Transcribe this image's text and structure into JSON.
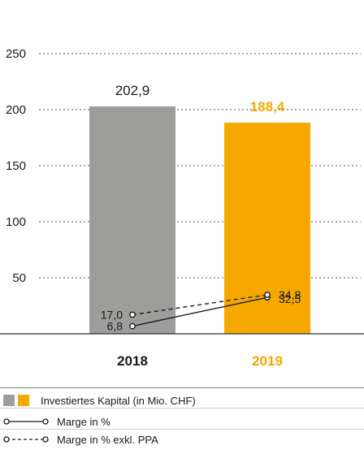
{
  "chart_data": {
    "type": "bar",
    "categories": [
      "2018",
      "2019"
    ],
    "ylim": [
      0,
      250
    ],
    "yticks": [
      50,
      100,
      150,
      200,
      250
    ],
    "grid": true,
    "bars": {
      "name": "Investiertes Kapital (in Mio. CHF)",
      "values": [
        202.9,
        188.4
      ],
      "labels": [
        "202,9",
        "188,4"
      ],
      "colors": [
        "#9d9d9c",
        "#f5a800"
      ]
    },
    "lines": [
      {
        "name": "Marge in %",
        "values": [
          6.8,
          32.5
        ],
        "labels": [
          "6,8",
          "32,5"
        ],
        "style": "solid"
      },
      {
        "name": "Marge in % exkl. PPA",
        "values": [
          17.0,
          34.8
        ],
        "labels": [
          "17,0",
          "34,8"
        ],
        "style": "dashed"
      }
    ],
    "highlight_color": "#f5a800",
    "legend_position": "bottom"
  },
  "legend": {
    "bar_label": "Investiertes Kapital (in Mio. CHF)",
    "line1_label": "Marge in %",
    "line2_label": "Marge in % exkl. PPA"
  }
}
